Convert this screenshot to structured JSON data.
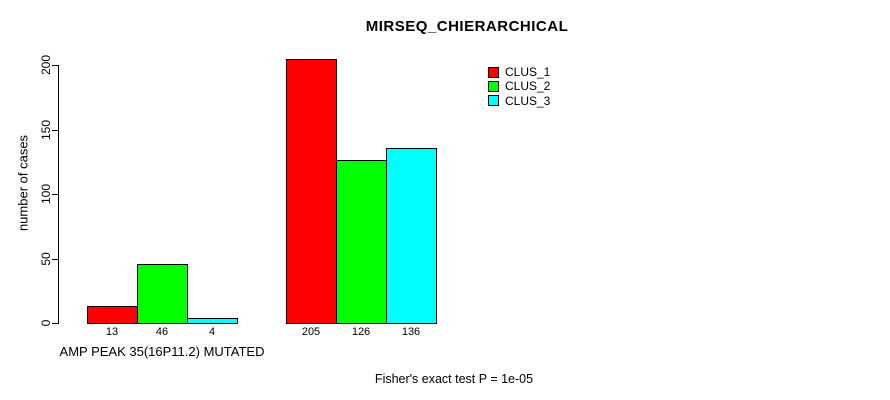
{
  "title": "MIRSEQ_CHIERARCHICAL",
  "footer_note": "Fisher's exact test P = 1e-05",
  "chart_data": {
    "type": "bar",
    "title": "MIRSEQ_CHIERARCHICAL",
    "ylabel": "number of cases",
    "ylim": [
      0,
      200
    ],
    "yticks": [
      0,
      50,
      100,
      150,
      200
    ],
    "grid": false,
    "legend_position": "top-right-inside",
    "series": [
      {
        "name": "CLUS_1",
        "color": "#FF0000"
      },
      {
        "name": "CLUS_2",
        "color": "#00FF00"
      },
      {
        "name": "CLUS_3",
        "color": "#00FFFF"
      }
    ],
    "groups": [
      {
        "label": "AMP PEAK 35(16P11.2) MUTATED",
        "values": [
          13,
          46,
          4
        ]
      },
      {
        "label": "",
        "values": [
          205,
          126,
          136
        ]
      }
    ],
    "bar_value_labels": [
      [
        "13",
        "46",
        "4"
      ],
      [
        "205",
        "126",
        "136"
      ]
    ],
    "annotation": "Fisher's exact test P = 1e-05"
  }
}
